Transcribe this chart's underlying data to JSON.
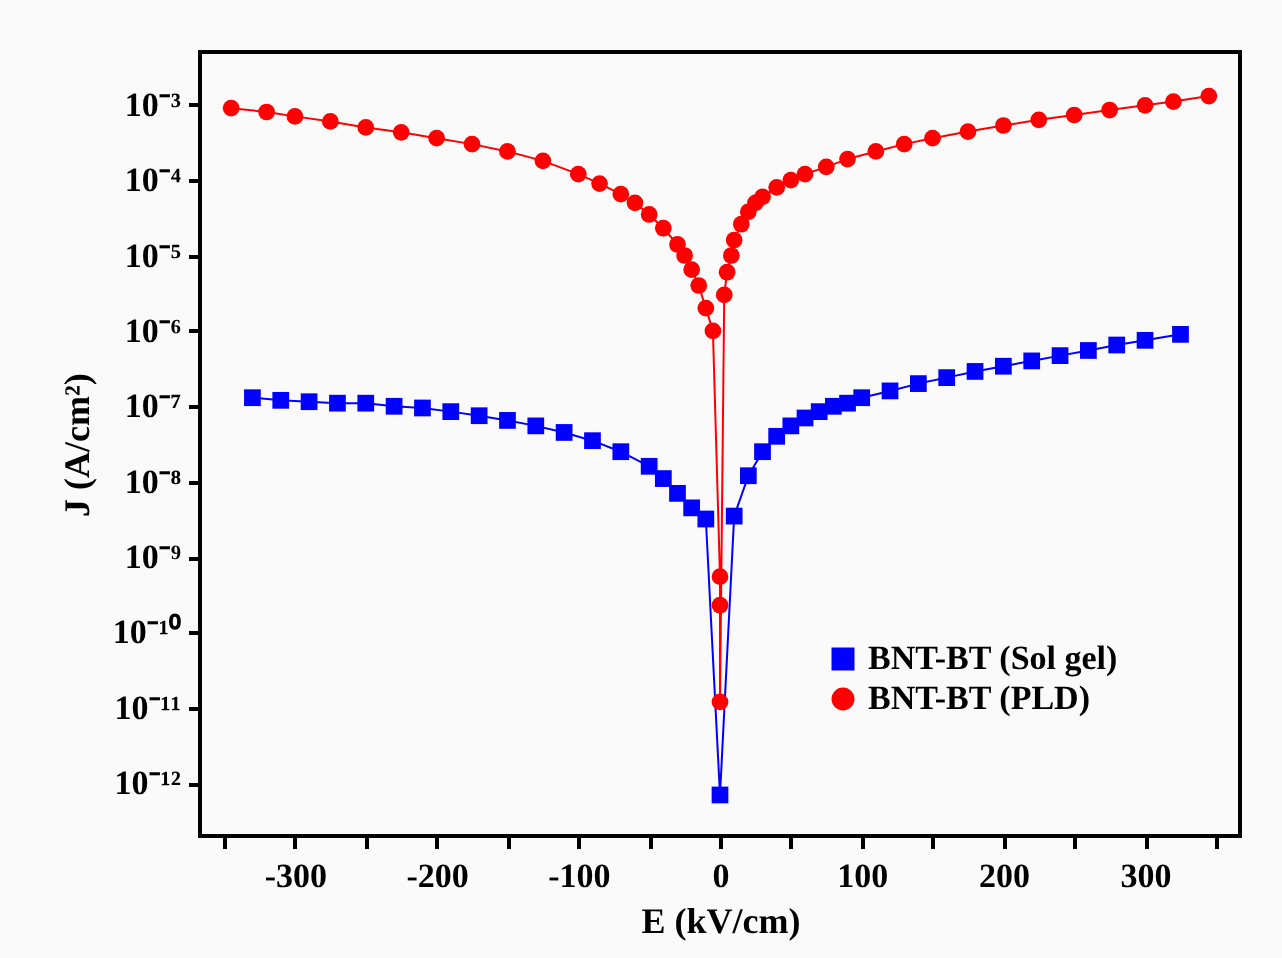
{
  "chart_data": {
    "type": "line",
    "xlabel": "E (kV/cm)",
    "ylabel": "J (A/cm²)",
    "log": "y",
    "legend": "bottom right",
    "grid": false,
    "xlim": [
      -367,
      367
    ],
    "xticks": [
      {
        "value": -350,
        "label": null
      },
      -300,
      {
        "value": -250,
        "label": null
      },
      -200,
      {
        "value": -150,
        "label": null
      },
      -100,
      {
        "value": -50,
        "label": null
      },
      0,
      {
        "value": 50,
        "label": null
      },
      100,
      {
        "value": 150,
        "label": null
      },
      200,
      {
        "value": 250,
        "label": null
      },
      300,
      {
        "value": 350,
        "label": null
      }
    ],
    "ylim": [
      2e-13,
      0.005
    ],
    "yticks": [
      {
        "value": 1e-12,
        "label": "10⁻¹²"
      },
      {
        "value": 1e-11,
        "label": "10⁻¹¹"
      },
      {
        "value": 1e-10,
        "label": "10⁻¹⁰"
      },
      {
        "value": 1e-09,
        "label": "10⁻⁹"
      },
      {
        "value": 1e-08,
        "label": "10⁻⁸"
      },
      {
        "value": 1e-07,
        "label": "10⁻⁷"
      },
      {
        "value": 1e-06,
        "label": "10⁻⁶"
      },
      {
        "value": 1e-05,
        "label": "10⁻⁵"
      },
      {
        "value": 0.0001,
        "label": "10⁻⁴"
      },
      {
        "value": 0.001,
        "label": "10⁻³"
      }
    ],
    "series": [
      {
        "name": "BNT-BT (Sol gel)",
        "color": "#0000ff",
        "marker": "square",
        "x": [
          -330,
          -310,
          -290,
          -270,
          -250,
          -230,
          -210,
          -190,
          -170,
          -150,
          -130,
          -110,
          -90,
          -70,
          -50,
          -40,
          -30,
          -20,
          -10,
          0,
          10,
          20,
          30,
          40,
          50,
          60,
          70,
          80,
          90,
          100,
          120,
          140,
          160,
          180,
          200,
          220,
          240,
          260,
          280,
          300,
          325
        ],
        "values": [
          1.3e-07,
          1.2e-07,
          1.15e-07,
          1.1e-07,
          1.1e-07,
          1e-07,
          9.5e-08,
          8.5e-08,
          7.5e-08,
          6.5e-08,
          5.5e-08,
          4.5e-08,
          3.5e-08,
          2.5e-08,
          1.6e-08,
          1.1e-08,
          7e-09,
          4.5e-09,
          3.2e-09,
          7e-13,
          3.5e-09,
          1.2e-08,
          2.5e-08,
          4e-08,
          5.5e-08,
          7e-08,
          8.5e-08,
          1e-07,
          1.1e-07,
          1.3e-07,
          1.6e-07,
          2e-07,
          2.4e-07,
          2.9e-07,
          3.4e-07,
          4e-07,
          4.7e-07,
          5.5e-07,
          6.5e-07,
          7.5e-07,
          9e-07
        ]
      },
      {
        "name": "BNT-BT (PLD)",
        "color": "#ff0000",
        "marker": "circle",
        "x": [
          -345,
          -320,
          -300,
          -275,
          -250,
          -225,
          -200,
          -175,
          -150,
          -125,
          -100,
          -85,
          -70,
          -60,
          -50,
          -40,
          -30,
          -25,
          -20,
          -15,
          -10,
          -5,
          0,
          0,
          0,
          3,
          5,
          8,
          10,
          15,
          20,
          25,
          30,
          40,
          50,
          60,
          75,
          90,
          110,
          130,
          150,
          175,
          200,
          225,
          250,
          275,
          300,
          320,
          345
        ],
        "values": [
          0.0009,
          0.0008,
          0.0007,
          0.0006,
          0.0005,
          0.00043,
          0.00036,
          0.0003,
          0.00024,
          0.00018,
          0.00012,
          9e-05,
          6.5e-05,
          5e-05,
          3.5e-05,
          2.3e-05,
          1.4e-05,
          1e-05,
          6.5e-06,
          4e-06,
          2e-06,
          1e-06,
          5.5e-10,
          2.3e-10,
          1.2e-11,
          3e-06,
          6e-06,
          1e-05,
          1.6e-05,
          2.6e-05,
          3.8e-05,
          5e-05,
          6e-05,
          8e-05,
          0.0001,
          0.00012,
          0.00015,
          0.00019,
          0.00024,
          0.0003,
          0.00036,
          0.00044,
          0.00053,
          0.00063,
          0.00073,
          0.00085,
          0.00098,
          0.0011,
          0.0013
        ]
      }
    ]
  }
}
